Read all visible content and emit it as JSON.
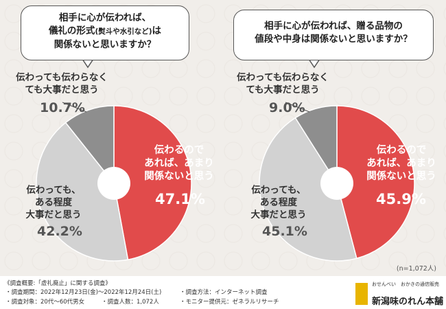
{
  "chart_data": [
    {
      "type": "pie",
      "title": "相手に心が伝われば、儀礼の形式(熨斗や水引など)は関係ないと思いますか？",
      "title_lines": [
        "相手に心が伝われば、",
        "儀礼の形式",
        "(熨斗や水引など)",
        "は",
        "関係ないと思いますか？"
      ],
      "slices": [
        {
          "label": "伝わるのであれば、あまり関係ないと思う",
          "label_lines": [
            "伝わるので",
            "あれば、あまり",
            "関係ないと思う"
          ],
          "value": 47.1,
          "display": "47.1%",
          "color": "#e14b4b"
        },
        {
          "label": "伝わっても、ある程度大事だと思う",
          "label_lines": [
            "伝わっても、",
            "ある程度",
            "大事だと思う"
          ],
          "value": 42.2,
          "display": "42.2%",
          "color": "#d2d2d2"
        },
        {
          "label": "伝わっても伝わらなくても大事だと思う",
          "label_lines": [
            "伝わっても伝わらなく",
            "ても大事だと思う"
          ],
          "value": 10.7,
          "display": "10.7%",
          "color": "#8e8e8e"
        }
      ]
    },
    {
      "type": "pie",
      "title": "相手に心が伝われば、贈る品物の値段や中身は関係ないと思いますか？",
      "title_lines": [
        "相手に心が伝われば、贈る品物の",
        "値段や中身は関係ないと思いますか？"
      ],
      "slices": [
        {
          "label": "伝わるのであれば、あまり関係ないと思う",
          "label_lines": [
            "伝わるので",
            "あれば、あまり",
            "関係ないと思う"
          ],
          "value": 45.9,
          "display": "45.9%",
          "color": "#e14b4b"
        },
        {
          "label": "伝わっても、ある程度大事だと思う",
          "label_lines": [
            "伝わっても、",
            "ある程度",
            "大事だと思う"
          ],
          "value": 45.1,
          "display": "45.1%",
          "color": "#d2d2d2"
        },
        {
          "label": "伝わっても伝わらなくても大事だと思う",
          "label_lines": [
            "伝わっても伝わらなく",
            "ても大事だと思う"
          ],
          "value": 9.0,
          "display": "9.0%",
          "color": "#8e8e8e"
        }
      ]
    }
  ],
  "sample_note": "(n=1,072人)",
  "survey": {
    "title": "《調査概要:「虚礼廃止」に関する調査》",
    "period": "・調査期間：2022年12月23日(金)〜2022年12月24日(土)",
    "method": "・調査方法：インターネット調査",
    "target": "・調査対象：20代〜60代男女",
    "count": "・調査人数：1,072人",
    "provider": "・モニター提供元：ゼネラルリサーチ"
  },
  "brand": {
    "tagline": "おせんべい　おかきの通信販売",
    "name": "新潟味のれん本舗"
  }
}
